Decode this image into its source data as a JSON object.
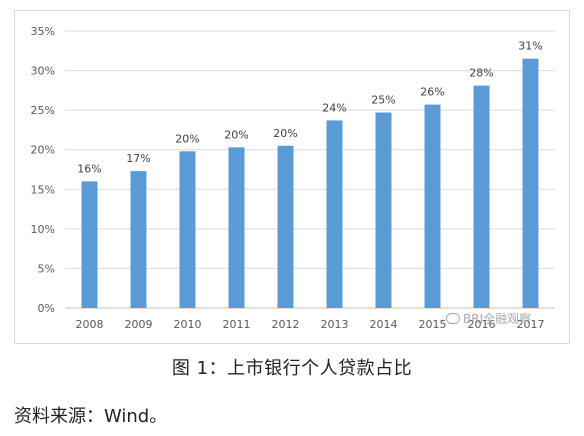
{
  "chart_data": {
    "type": "bar",
    "categories": [
      "2008",
      "2009",
      "2010",
      "2011",
      "2012",
      "2013",
      "2014",
      "2015",
      "2016",
      "2017"
    ],
    "values": [
      16,
      17.3,
      19.8,
      20.3,
      20.5,
      23.7,
      24.7,
      25.7,
      28.1,
      31.5
    ],
    "data_labels": [
      "16%",
      "17%",
      "20%",
      "20%",
      "20%",
      "24%",
      "25%",
      "26%",
      "28%",
      "31%"
    ],
    "y_ticks": [
      "0%",
      "5%",
      "10%",
      "15%",
      "20%",
      "25%",
      "30%",
      "35%"
    ],
    "ylim": [
      0,
      35
    ],
    "grid": true,
    "bar_color": "#5b9bd5"
  },
  "caption": "图 1：上市银行个人贷款占比",
  "source": "资料来源：Wind。",
  "watermark": "BRI全融观察"
}
